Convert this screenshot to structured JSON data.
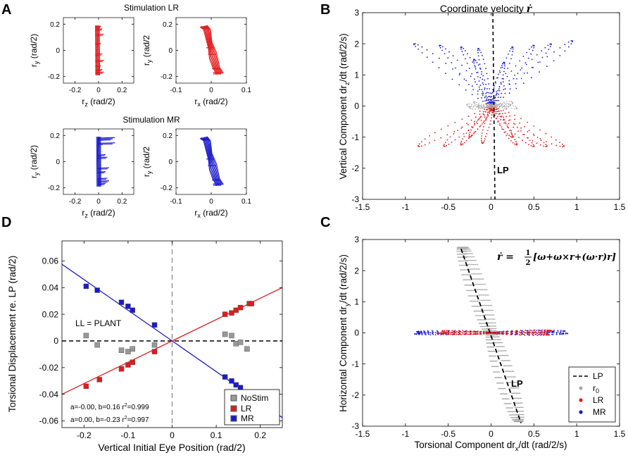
{
  "panel_letters": {
    "A": "A",
    "B": "B",
    "C": "C",
    "D": "D"
  },
  "colors": {
    "LR": "#e31a1c",
    "MR": "#1a1acc",
    "NoStim": "#999999",
    "axis": "#000000",
    "grey": "#a8a8a8"
  },
  "chart_data": [
    {
      "id": "A1",
      "panel": "A",
      "type": "line",
      "group_title": "Stimulation LR",
      "xlabel": "r",
      "xlabel_sub": "z",
      "xlabel_unit": " (rad/2)",
      "ylabel": "r",
      "ylabel_sub": "y",
      "ylabel_unit": " (rad/2)",
      "xlim": [
        -0.3,
        0.3
      ],
      "ylim": [
        -0.25,
        0.25
      ],
      "xticks": [
        "-0.2",
        "0",
        "0.2"
      ],
      "yticks": [
        "0.2",
        "0",
        "-0.2"
      ],
      "series": [
        {
          "name": "LR",
          "color": "LR",
          "x_approx": [
            -0.01,
            -0.01,
            0.0,
            0.0
          ],
          "y_approx": [
            0.18,
            0.05,
            -0.05,
            -0.18
          ]
        }
      ]
    },
    {
      "id": "A2",
      "panel": "A",
      "type": "line",
      "xlabel": "r",
      "xlabel_sub": "x",
      "xlabel_unit": " (rad/2)",
      "ylabel": "r",
      "ylabel_sub": "y",
      "ylabel_unit": " (rad/2",
      "xlim": [
        -0.1,
        0.1
      ],
      "ylim": [
        -0.25,
        0.25
      ],
      "xticks": [
        "-0.1",
        "0",
        "0.1"
      ],
      "yticks": [
        "0.2",
        "0",
        "-0.2"
      ],
      "series": [
        {
          "name": "LR",
          "color": "LR",
          "x_approx": [
            -0.02,
            0.0,
            0.02
          ],
          "y_approx": [
            0.18,
            0.0,
            -0.18
          ]
        }
      ]
    },
    {
      "id": "A3",
      "panel": "A",
      "type": "line",
      "group_title": "Stimulation MR",
      "xlabel": "r",
      "xlabel_sub": "z",
      "xlabel_unit": " (rad/2)",
      "ylabel": "r",
      "ylabel_sub": "y",
      "ylabel_unit": " (rad/2)",
      "xlim": [
        -0.3,
        0.3
      ],
      "ylim": [
        -0.25,
        0.25
      ],
      "xticks": [
        "-0.2",
        "0",
        "0.2"
      ],
      "yticks": [
        "0.2",
        "0",
        "-0.2"
      ],
      "series": [
        {
          "name": "MR",
          "color": "MR",
          "x_approx": [
            0.0,
            0.0,
            0.0
          ],
          "y_approx": [
            0.18,
            0.0,
            -0.18
          ]
        }
      ]
    },
    {
      "id": "A4",
      "panel": "A",
      "type": "line",
      "xlabel": "r",
      "xlabel_sub": "x",
      "xlabel_unit": " (rad/2)",
      "ylabel": "r",
      "ylabel_sub": "y",
      "ylabel_unit": " (rad/2",
      "xlim": [
        -0.1,
        0.1
      ],
      "ylim": [
        -0.25,
        0.25
      ],
      "xticks": [
        "-0.1",
        "0",
        "0.1"
      ],
      "yticks": [
        "0.2",
        "0",
        "-0.2"
      ],
      "series": [
        {
          "name": "MR",
          "color": "MR",
          "x_approx": [
            -0.02,
            0.0,
            0.02
          ],
          "y_approx": [
            0.18,
            0.0,
            -0.18
          ]
        }
      ]
    },
    {
      "id": "B",
      "panel": "B",
      "type": "scatter",
      "title": "Coordinate velocity",
      "title_symbol": "ṙ",
      "xlabel": "",
      "ylabel": "Vertical Component dr",
      "ylabel_sub": "z",
      "ylabel_unit": "/dt (rad/2/s)",
      "xlim": [
        -1.5,
        1.5
      ],
      "ylim": [
        -3,
        3
      ],
      "xticks": [
        "-1.5",
        "-1",
        "-0.5",
        "0",
        "0.5",
        "1",
        "1.5"
      ],
      "yticks": [
        "3",
        "2",
        "1",
        "0",
        "-1",
        "-2",
        "-3"
      ],
      "annotation": "LP",
      "series": [
        {
          "name": "MR",
          "color": "MR",
          "lobe_tips": [
            [
              -0.9,
              2.0
            ],
            [
              -0.6,
              1.95
            ],
            [
              -0.35,
              1.9
            ],
            [
              -0.15,
              1.85
            ],
            [
              0.25,
              1.9
            ],
            [
              0.5,
              1.95
            ],
            [
              0.7,
              2.0
            ],
            [
              0.95,
              2.1
            ]
          ]
        },
        {
          "name": "LR",
          "color": "LR",
          "lobe_tips": [
            [
              -0.85,
              -1.3
            ],
            [
              -0.55,
              -1.3
            ],
            [
              -0.35,
              -1.25
            ],
            [
              -0.1,
              -1.2
            ],
            [
              0.3,
              -1.25
            ],
            [
              0.5,
              -1.3
            ],
            [
              0.65,
              -1.3
            ],
            [
              0.85,
              -1.3
            ]
          ]
        },
        {
          "name": "NoStim",
          "color": "NoStim",
          "x_range": [
            -0.3,
            0.3
          ],
          "y_range": [
            -0.1,
            0.1
          ]
        }
      ]
    },
    {
      "id": "C",
      "panel": "C",
      "type": "scatter",
      "formula_lhs": "ṙ = ",
      "formula_num": "1",
      "formula_den": "2",
      "formula_rhs": "[ω+ω×r+(ω·r)r]",
      "xlabel": "Torsional Component dr",
      "xlabel_sub": "x",
      "xlabel_unit": "/dt  (rad/2/s)",
      "ylabel": "Horizontal Component dr",
      "ylabel_sub": "y",
      "ylabel_unit": "/dt (rad/2/s)",
      "xlim": [
        -1.5,
        1.5
      ],
      "ylim": [
        -3,
        3
      ],
      "xticks": [
        "-1.5",
        "-1",
        "-0.5",
        "0",
        "0.5",
        "1",
        "1.5"
      ],
      "yticks": [
        "3",
        "2",
        "1",
        "0",
        "-1",
        "-2",
        "-3"
      ],
      "annotation": "LP",
      "legend": [
        {
          "label": "LP",
          "style": "dashed"
        },
        {
          "label": "r",
          "sub": "0",
          "color": "NoStim"
        },
        {
          "label": "LR",
          "color": "LR"
        },
        {
          "label": "MR",
          "color": "MR"
        }
      ],
      "lp_line": {
        "x": [
          -0.35,
          0.35
        ],
        "y": [
          2.7,
          -2.9
        ]
      },
      "series": [
        {
          "name": "r0",
          "color": "NoStim",
          "x_range": [
            -0.4,
            0.4
          ],
          "y_range": [
            -3,
            2.8
          ]
        },
        {
          "name": "LR",
          "color": "LR",
          "x_range": [
            -0.75,
            0.75
          ],
          "y_range": [
            -0.08,
            0.08
          ]
        },
        {
          "name": "MR",
          "color": "MR",
          "x_range": [
            -0.95,
            0.95
          ],
          "y_range": [
            -0.05,
            0.05
          ]
        }
      ]
    },
    {
      "id": "D",
      "panel": "D",
      "type": "scatter",
      "xlabel": "Vertical Initial Eye Position (rad/2)",
      "ylabel": "Torsional Displacement re. LP (rad/2)",
      "xlim": [
        -0.25,
        0.25
      ],
      "ylim": [
        -0.065,
        0.075
      ],
      "xticks": [
        "-0.2",
        "-0.1",
        "0",
        "0.1",
        "0.2"
      ],
      "yticks": [
        "0.06",
        "0.04",
        "0.02",
        "0",
        "-0.02",
        "-0.04",
        "-0.06"
      ],
      "annotation": "LL = PLANT",
      "fit_LR_text": "a=-0.00, b=0.16 r",
      "fit_LR_r2": "2",
      "fit_LR_val": "=0.999",
      "fit_MR_text": "a=0.00, b=-0.23 r",
      "fit_MR_r2": "2",
      "fit_MR_val": "=0.997",
      "fits": [
        {
          "name": "LR",
          "a": 0.0,
          "b": 0.16
        },
        {
          "name": "MR",
          "a": 0.0,
          "b": -0.23
        }
      ],
      "legend": [
        {
          "label": "NoStim",
          "color": "NoStim"
        },
        {
          "label": "LR",
          "color": "LR"
        },
        {
          "label": "MR",
          "color": "MR"
        }
      ],
      "series": [
        {
          "name": "NoStim",
          "color": "NoStim",
          "x": [
            -0.195,
            -0.17,
            -0.115,
            -0.1,
            -0.09,
            -0.04,
            0.12,
            0.135,
            0.145,
            0.155,
            0.17
          ],
          "y": [
            0.004,
            -0.003,
            -0.007,
            -0.008,
            -0.006,
            -0.003,
            0.005,
            0.004,
            -0.002,
            -0.001,
            -0.006
          ]
        },
        {
          "name": "LR",
          "color": "LR",
          "x": [
            -0.195,
            -0.165,
            -0.115,
            -0.1,
            -0.09,
            -0.04,
            0.12,
            0.135,
            0.145,
            0.155,
            0.175,
            0.18
          ],
          "y": [
            -0.034,
            -0.029,
            -0.021,
            -0.018,
            -0.016,
            -0.008,
            0.02,
            0.021,
            0.023,
            0.025,
            0.028,
            0.028
          ]
        },
        {
          "name": "MR",
          "color": "MR",
          "x": [
            -0.195,
            -0.17,
            -0.115,
            -0.1,
            -0.09,
            -0.04,
            0.12,
            0.135,
            0.145,
            0.155,
            0.175,
            0.18
          ],
          "y": [
            0.041,
            0.038,
            0.029,
            0.026,
            0.023,
            0.012,
            -0.027,
            -0.03,
            -0.033,
            -0.035,
            -0.04,
            -0.041
          ]
        }
      ]
    }
  ]
}
